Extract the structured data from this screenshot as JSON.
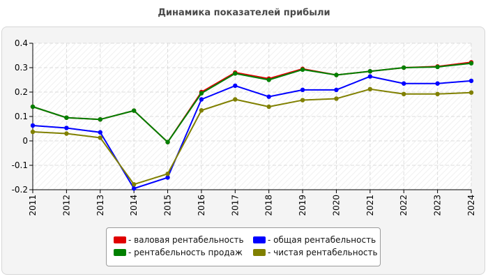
{
  "chart_data": {
    "type": "line",
    "title": "Динамика показателей прибыли",
    "xlabel": "",
    "ylabel": "",
    "x": [
      "2011",
      "2012",
      "2013",
      "2014",
      "2015",
      "2016",
      "2017",
      "2018",
      "2019",
      "2020",
      "2021",
      "2022",
      "2023",
      "2024"
    ],
    "ylim": [
      -0.2,
      0.4
    ],
    "yticks": [
      "0.4",
      "0.3",
      "0.2",
      "0.1",
      "0",
      "-0.1",
      "-0.2"
    ],
    "grid": true,
    "legend_position": "bottom",
    "series": [
      {
        "name": "- валовая рентабельность",
        "color": "#e00000",
        "values": [
          0.14,
          0.095,
          0.088,
          0.124,
          -0.005,
          0.2,
          0.28,
          0.255,
          0.295,
          0.27,
          0.285,
          0.3,
          0.305,
          0.322
        ]
      },
      {
        "name": "- рентабельность продаж",
        "color": "#008000",
        "values": [
          0.14,
          0.095,
          0.088,
          0.124,
          -0.005,
          0.195,
          0.276,
          0.25,
          0.292,
          0.27,
          0.285,
          0.3,
          0.303,
          0.318
        ]
      },
      {
        "name": "- общая рентабельность",
        "color": "#0000ff",
        "values": [
          0.063,
          0.053,
          0.035,
          -0.195,
          -0.15,
          0.17,
          0.226,
          0.181,
          0.209,
          0.209,
          0.264,
          0.235,
          0.235,
          0.246
        ]
      },
      {
        "name": "- чистая рентабельность",
        "color": "#808000",
        "values": [
          0.037,
          0.03,
          0.013,
          -0.178,
          -0.135,
          0.125,
          0.17,
          0.14,
          0.167,
          0.173,
          0.212,
          0.192,
          0.192,
          0.198
        ]
      }
    ]
  }
}
